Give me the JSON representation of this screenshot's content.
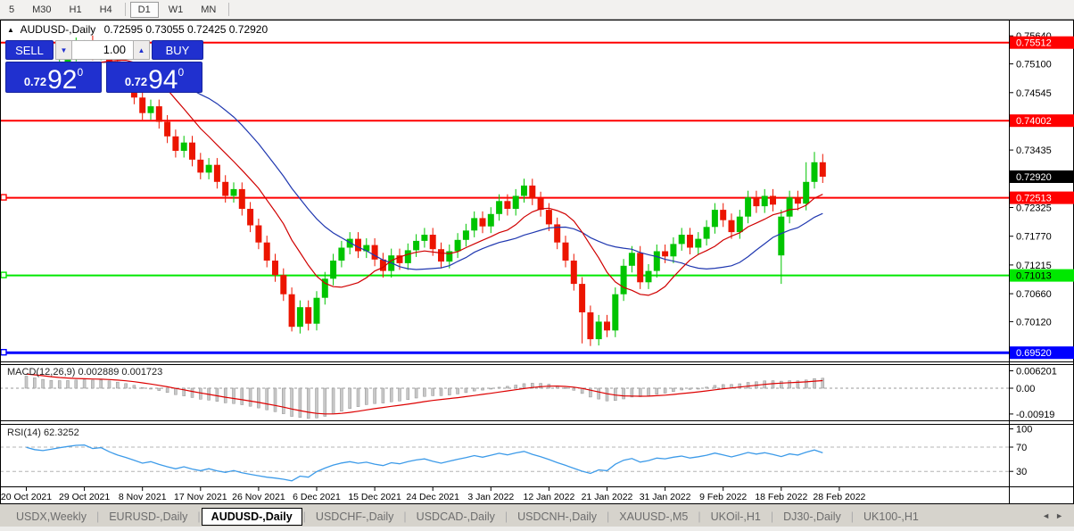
{
  "colors": {
    "accent_blue": "#2030cf",
    "candle_up": "#00c400",
    "candle_down": "#ec1500",
    "ma_fast": "#d00000",
    "ma_slow": "#2038b0",
    "rsi_line": "#3d9be9",
    "macd_signal": "#dd0000",
    "macd_bar": "#c9c9c9",
    "level_red": "#ff0000",
    "level_green": "#00e800",
    "level_blue": "#0000ff"
  },
  "toolbar": {
    "items": [
      "5",
      "M30",
      "H1",
      "H4",
      "D1",
      "W1",
      "MN"
    ],
    "active": "D1",
    "divider_after": [
      "H4",
      "MN"
    ]
  },
  "chart": {
    "collapse_glyph": "▲",
    "title_symbol": "AUDUSD-,Daily",
    "title_ohlc": "0.72595 0.73055 0.72425 0.72920"
  },
  "trade": {
    "sell_label": "SELL",
    "buy_label": "BUY",
    "volume": "1.00",
    "spin_down_glyph": "▼",
    "spin_up_glyph": "▲",
    "bid_prefix": "0.72",
    "bid_big": "92",
    "bid_sup": "0",
    "ask_prefix": "0.72",
    "ask_big": "94",
    "ask_sup": "0"
  },
  "chart_data": {
    "type": "candlestick",
    "symbol": "AUDUSD",
    "timeframe": "Daily",
    "open0": 0.75,
    "closes": [
      0.7492,
      0.7475,
      0.7468,
      0.7486,
      0.7508,
      0.7528,
      0.7548,
      0.7552,
      0.753,
      0.7542,
      0.7515,
      0.749,
      0.747,
      0.7445,
      0.7415,
      0.7428,
      0.7398,
      0.737,
      0.7342,
      0.7358,
      0.7325,
      0.73,
      0.7315,
      0.7282,
      0.7255,
      0.7268,
      0.723,
      0.7198,
      0.7165,
      0.713,
      0.7102,
      0.7065,
      0.7002,
      0.704,
      0.7008,
      0.7058,
      0.7095,
      0.713,
      0.7155,
      0.7172,
      0.7148,
      0.716,
      0.7132,
      0.711,
      0.714,
      0.7125,
      0.715,
      0.7168,
      0.718,
      0.7152,
      0.7128,
      0.7148,
      0.717,
      0.7188,
      0.7212,
      0.7196,
      0.722,
      0.7245,
      0.723,
      0.7255,
      0.7275,
      0.725,
      0.7228,
      0.72,
      0.7165,
      0.713,
      0.7085,
      0.703,
      0.6978,
      0.7012,
      0.6995,
      0.7065,
      0.712,
      0.7145,
      0.7088,
      0.711,
      0.7148,
      0.7138,
      0.7162,
      0.718,
      0.7155,
      0.7172,
      0.7195,
      0.7228,
      0.7208,
      0.7185,
      0.7215,
      0.7252,
      0.7235,
      0.7255,
      0.7238,
      0.7215,
      0.7252,
      0.724,
      0.7282,
      0.732,
      0.7292
    ],
    "wick": 0.0013,
    "overrides": {
      "7": {
        "h": 0.7556
      },
      "32": {
        "l": 0.6993
      },
      "34": {
        "l": 0.6995
      },
      "67": {
        "l": 0.697
      },
      "69": {
        "l": 0.6966
      },
      "91": {
        "o": 0.714,
        "l": 0.7085
      },
      "94": {
        "h": 0.732
      },
      "95": {
        "h": 0.734
      },
      "96": {
        "h": 0.7336,
        "l": 0.728
      }
    },
    "ma_fast_period": 10,
    "ma_slow_period": 20,
    "hlines": [
      {
        "price": 0.75512,
        "label": "0.75512",
        "color": "#ff0000",
        "w": 2,
        "text": "#ffffff",
        "handle": false
      },
      {
        "price": 0.74002,
        "label": "0.74002",
        "color": "#ff0000",
        "w": 2,
        "text": "#ffffff",
        "handle": false
      },
      {
        "price": 0.72513,
        "label": "0.72513",
        "color": "#ff0000",
        "w": 2,
        "text": "#ffffff",
        "handle": true
      },
      {
        "price": 0.71013,
        "label": "0.71013",
        "color": "#00e800",
        "w": 2,
        "text": "#000000",
        "handle": true
      },
      {
        "price": 0.6952,
        "label": "0.69520",
        "color": "#0000ff",
        "w": 3,
        "text": "#ffffff",
        "handle": true
      }
    ],
    "current_price": {
      "value": 0.7292,
      "label": "0.72920",
      "bg": "#000000",
      "text": "#ffffff"
    },
    "axis_labels": [
      "0.75640",
      "0.75100",
      "0.74545",
      "0.73435",
      "0.72325",
      "0.71770",
      "0.71215",
      "0.70660",
      "0.70120"
    ],
    "date_ticks": [
      [
        0,
        "20 Oct 2021"
      ],
      [
        7,
        "29 Oct 2021"
      ],
      [
        14,
        "8 Nov 2021"
      ],
      [
        21,
        "17 Nov 2021"
      ],
      [
        28,
        "26 Nov 2021"
      ],
      [
        35,
        "6 Dec 2021"
      ],
      [
        42,
        "15 Dec 2021"
      ],
      [
        49,
        "24 Dec 2021"
      ],
      [
        56,
        "3 Jan 2022"
      ],
      [
        63,
        "12 Jan 2022"
      ],
      [
        70,
        "21 Jan 2022"
      ],
      [
        77,
        "31 Jan 2022"
      ],
      [
        84,
        "9 Feb 2022"
      ],
      [
        91,
        "18 Feb 2022"
      ],
      [
        98,
        "28 Feb 2022"
      ]
    ],
    "macd": {
      "label": "MACD(12,26,9) 0.002889 0.001723",
      "axis": [
        "0.006201",
        "0.00",
        "-0.00919"
      ],
      "value": 0.002889,
      "signal": 0.001723
    },
    "rsi": {
      "label": "RSI(14) 62.3252",
      "value": 62.3252,
      "axis": [
        "100",
        "70",
        "30"
      ],
      "levels": [
        70,
        30
      ]
    }
  },
  "tabs": {
    "items": [
      "USDX,Weekly",
      "EURUSD-,Daily",
      "AUDUSD-,Daily",
      "USDCHF-,Daily",
      "USDCAD-,Daily",
      "USDCNH-,Daily",
      "XAUUSD-,M5",
      "UKOil-,H1",
      "DJ30-,Daily",
      "UK100-,H1"
    ],
    "active": "AUDUSD-,Daily",
    "scroll_left": "◄",
    "scroll_right": "►"
  }
}
